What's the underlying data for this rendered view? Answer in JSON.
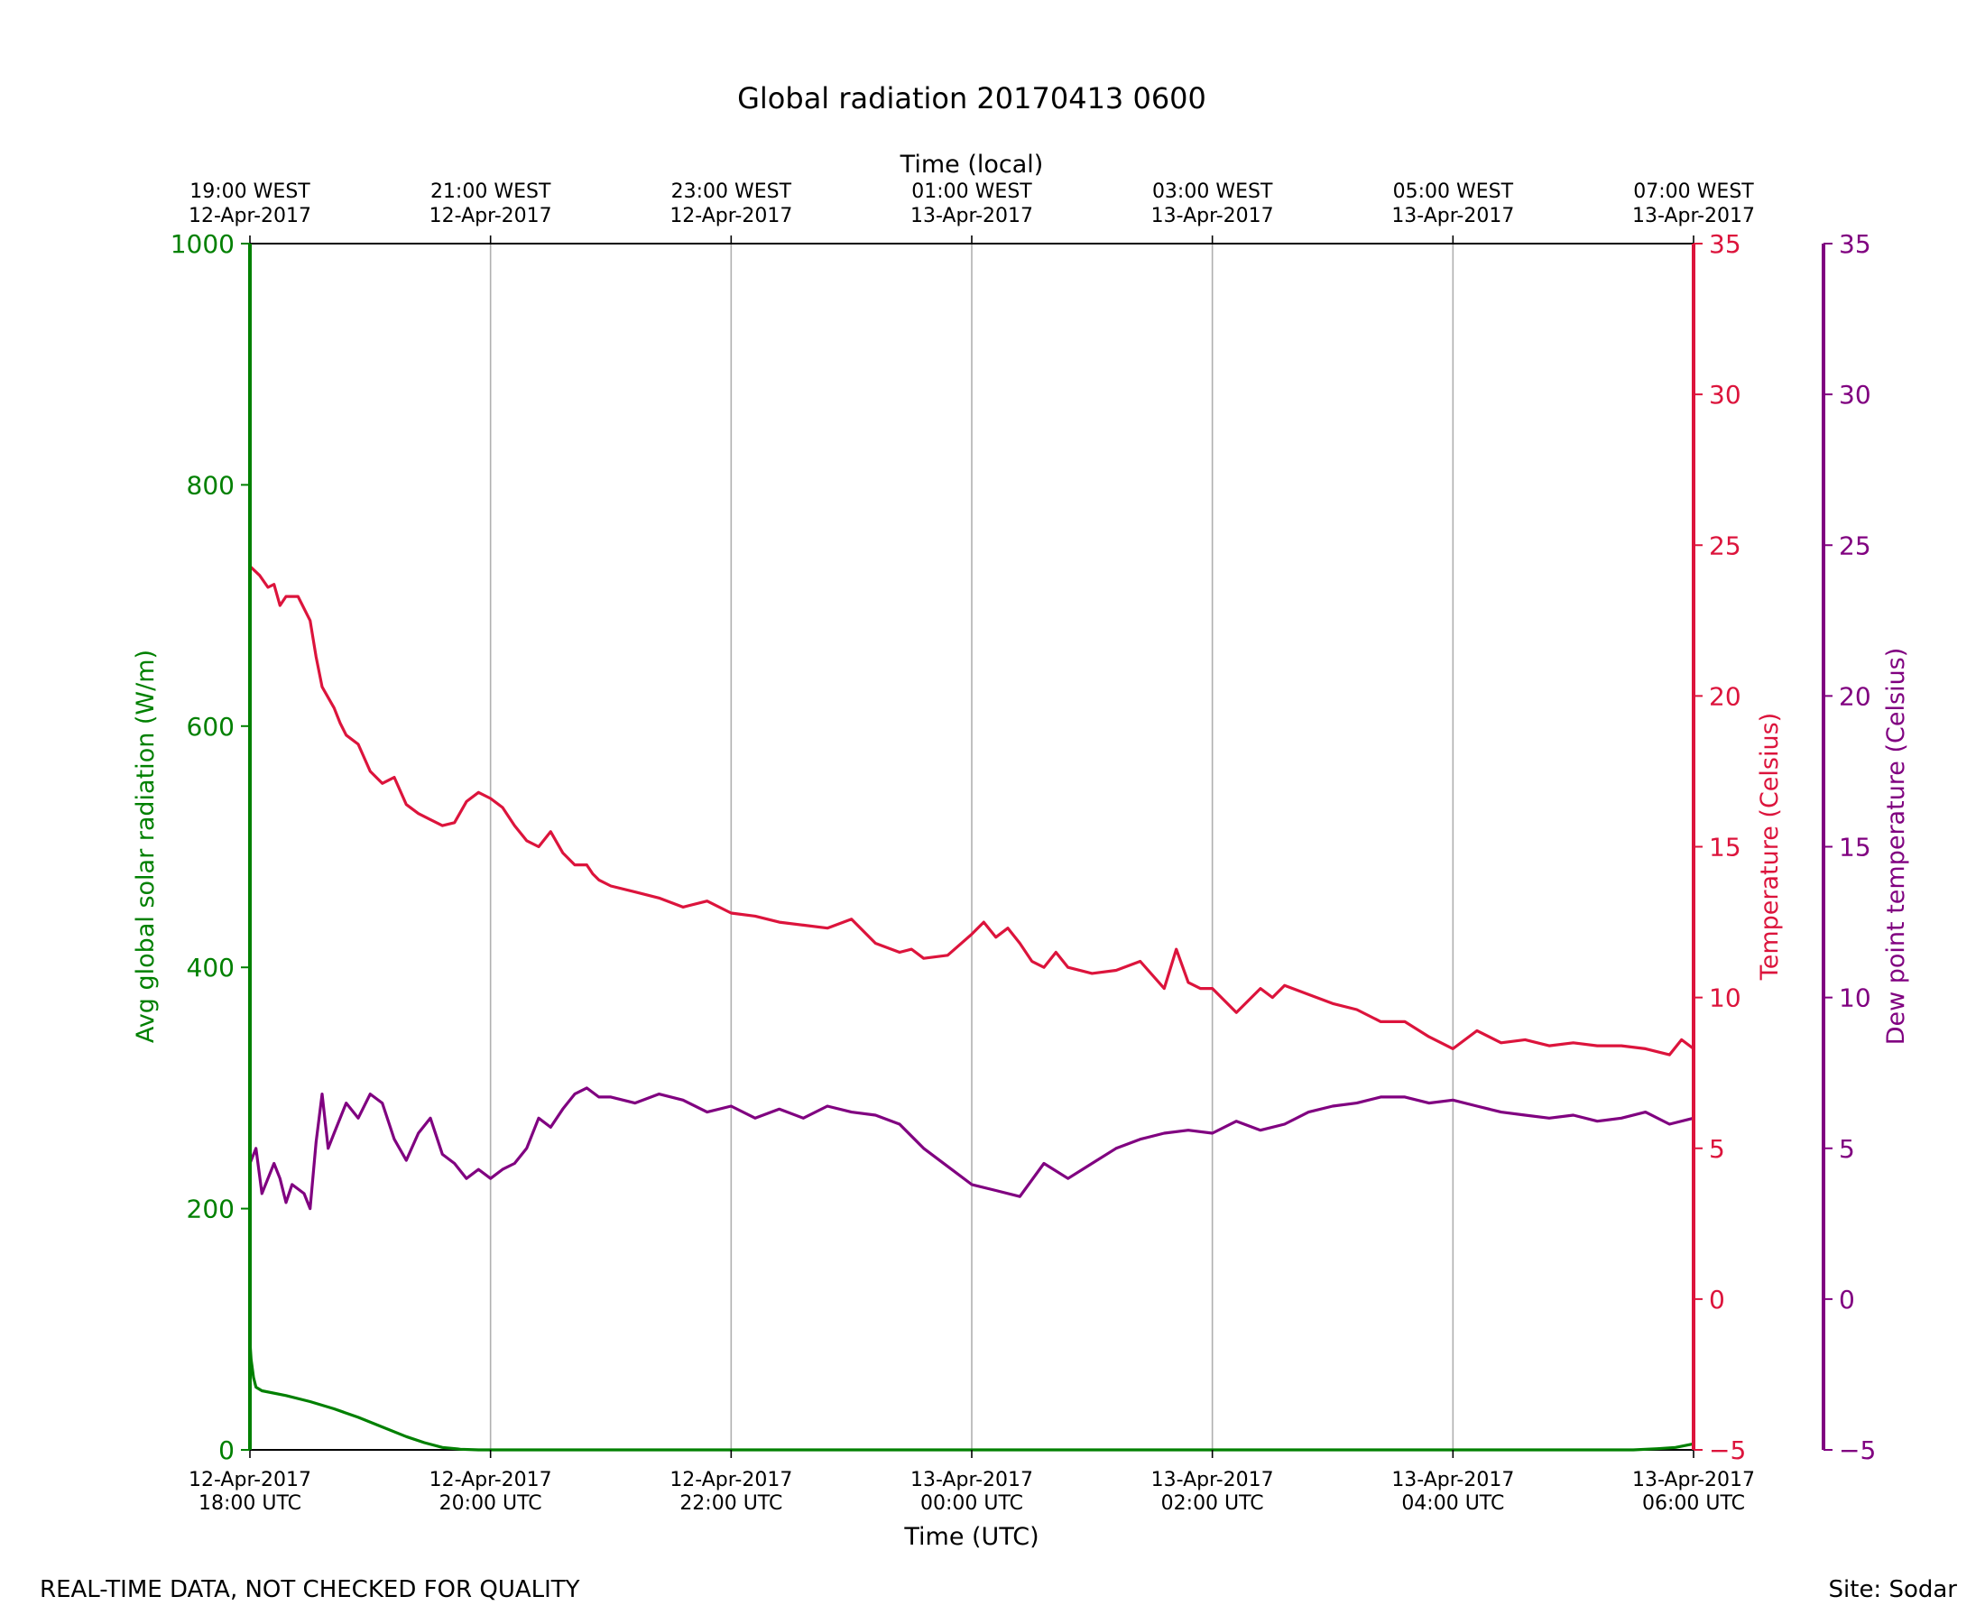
{
  "chart_data": {
    "type": "line",
    "title": "Global radiation 20170413 0600",
    "xlabel": "Time (UTC)",
    "x2label": "Time (local)",
    "x_range": [
      "2017-04-12 18:00 UTC",
      "2017-04-13 06:00 UTC"
    ],
    "x_ticks": [
      {
        "hour": 0,
        "utc_date": "12-Apr-2017",
        "utc_time": "18:00 UTC",
        "local_time": "19:00 WEST",
        "local_date": "12-Apr-2017"
      },
      {
        "hour": 2,
        "utc_date": "12-Apr-2017",
        "utc_time": "20:00 UTC",
        "local_time": "21:00 WEST",
        "local_date": "12-Apr-2017"
      },
      {
        "hour": 4,
        "utc_date": "12-Apr-2017",
        "utc_time": "22:00 UTC",
        "local_time": "23:00 WEST",
        "local_date": "12-Apr-2017"
      },
      {
        "hour": 6,
        "utc_date": "13-Apr-2017",
        "utc_time": "00:00 UTC",
        "local_time": "01:00 WEST",
        "local_date": "13-Apr-2017"
      },
      {
        "hour": 8,
        "utc_date": "13-Apr-2017",
        "utc_time": "02:00 UTC",
        "local_time": "03:00 WEST",
        "local_date": "13-Apr-2017"
      },
      {
        "hour": 10,
        "utc_date": "13-Apr-2017",
        "utc_time": "04:00 UTC",
        "local_time": "05:00 WEST",
        "local_date": "13-Apr-2017"
      },
      {
        "hour": 12,
        "utc_date": "13-Apr-2017",
        "utc_time": "06:00 UTC",
        "local_time": "07:00 WEST",
        "local_date": "13-Apr-2017"
      }
    ],
    "grid": "vertical",
    "axes": {
      "radiation": {
        "label": "Avg global solar radiation (W/m)",
        "range": [
          0,
          1000
        ],
        "ticks": [
          0,
          200,
          400,
          600,
          800,
          1000
        ],
        "color": "#008000"
      },
      "temperature": {
        "label": "Temperature (Celsius)",
        "range": [
          -5,
          35
        ],
        "ticks": [
          -5,
          0,
          5,
          10,
          15,
          20,
          25,
          30,
          35
        ],
        "color": "#dc143c"
      },
      "dewpoint": {
        "label": "Dew point temperature (Celsius)",
        "range": [
          -5,
          35
        ],
        "ticks": [
          -5,
          0,
          5,
          10,
          15,
          20,
          25,
          30,
          35
        ],
        "color": "#800080"
      }
    },
    "series": [
      {
        "axis": "radiation",
        "color": "#008000",
        "x_hours": [
          0,
          0.01,
          0.03,
          0.05,
          0.1,
          0.3,
          0.5,
          0.7,
          0.9,
          1.1,
          1.3,
          1.45,
          1.6,
          1.75,
          1.9,
          2.0,
          2.5,
          3.0,
          4.0,
          5.0,
          6.0,
          7.0,
          8.0,
          9.0,
          10.0,
          11.0,
          11.5,
          11.7,
          11.85,
          12.0
        ],
        "values": [
          90,
          75,
          60,
          52,
          49,
          45,
          40,
          34,
          27,
          19,
          11,
          6,
          2,
          0.5,
          0,
          0,
          0,
          0,
          0,
          0,
          0,
          0,
          0,
          0,
          0,
          0,
          0,
          1,
          2,
          5
        ]
      },
      {
        "axis": "temperature",
        "color": "#dc143c",
        "x_hours": [
          0,
          0.08,
          0.15,
          0.2,
          0.25,
          0.3,
          0.4,
          0.5,
          0.55,
          0.6,
          0.7,
          0.75,
          0.8,
          0.9,
          1.0,
          1.1,
          1.2,
          1.3,
          1.4,
          1.5,
          1.6,
          1.7,
          1.8,
          1.9,
          2.0,
          2.1,
          2.2,
          2.3,
          2.4,
          2.5,
          2.6,
          2.7,
          2.8,
          2.85,
          2.9,
          3.0,
          3.2,
          3.4,
          3.6,
          3.8,
          4.0,
          4.2,
          4.4,
          4.6,
          4.8,
          5.0,
          5.2,
          5.4,
          5.5,
          5.6,
          5.8,
          6.0,
          6.1,
          6.2,
          6.3,
          6.4,
          6.5,
          6.6,
          6.7,
          6.8,
          7.0,
          7.2,
          7.4,
          7.6,
          7.7,
          7.8,
          7.9,
          8.0,
          8.2,
          8.4,
          8.5,
          8.6,
          8.8,
          9.0,
          9.2,
          9.4,
          9.6,
          9.8,
          10.0,
          10.2,
          10.4,
          10.6,
          10.8,
          11.0,
          11.2,
          11.4,
          11.6,
          11.8,
          11.9,
          12.0
        ],
        "values": [
          24.3,
          24.0,
          23.6,
          23.7,
          23.0,
          23.3,
          23.3,
          22.5,
          21.3,
          20.3,
          19.6,
          19.1,
          18.7,
          18.4,
          17.5,
          17.1,
          17.3,
          16.4,
          16.1,
          15.9,
          15.7,
          15.8,
          16.5,
          16.8,
          16.6,
          16.3,
          15.7,
          15.2,
          15.0,
          15.5,
          14.8,
          14.4,
          14.4,
          14.1,
          13.9,
          13.7,
          13.5,
          13.3,
          13.0,
          13.2,
          12.8,
          12.7,
          12.5,
          12.4,
          12.3,
          12.6,
          11.8,
          11.5,
          11.6,
          11.3,
          11.4,
          12.1,
          12.5,
          12.0,
          12.3,
          11.8,
          11.2,
          11.0,
          11.5,
          11.0,
          10.8,
          10.9,
          11.2,
          10.3,
          11.6,
          10.5,
          10.3,
          10.3,
          9.5,
          10.3,
          10.0,
          10.4,
          10.1,
          9.8,
          9.6,
          9.2,
          9.2,
          8.7,
          8.3,
          8.9,
          8.5,
          8.6,
          8.4,
          8.5,
          8.4,
          8.4,
          8.3,
          8.1,
          8.6,
          8.3
        ]
      },
      {
        "axis": "dewpoint",
        "color": "#800080",
        "x_hours": [
          0,
          0.05,
          0.1,
          0.15,
          0.2,
          0.25,
          0.3,
          0.35,
          0.45,
          0.5,
          0.55,
          0.6,
          0.65,
          0.7,
          0.8,
          0.9,
          1.0,
          1.1,
          1.2,
          1.3,
          1.4,
          1.5,
          1.6,
          1.7,
          1.8,
          1.9,
          2.0,
          2.1,
          2.2,
          2.3,
          2.4,
          2.5,
          2.6,
          2.7,
          2.8,
          2.9,
          3.0,
          3.2,
          3.4,
          3.6,
          3.8,
          4.0,
          4.2,
          4.4,
          4.6,
          4.8,
          5.0,
          5.2,
          5.4,
          5.6,
          5.8,
          6.0,
          6.2,
          6.4,
          6.6,
          6.8,
          7.0,
          7.2,
          7.4,
          7.6,
          7.8,
          8.0,
          8.2,
          8.4,
          8.6,
          8.8,
          9.0,
          9.2,
          9.4,
          9.6,
          9.8,
          10.0,
          10.2,
          10.4,
          10.6,
          10.8,
          11.0,
          11.2,
          11.4,
          11.6,
          11.8,
          12.0
        ],
        "values": [
          4.5,
          5.0,
          3.5,
          4.0,
          4.5,
          4.0,
          3.2,
          3.8,
          3.5,
          3.0,
          5.2,
          6.8,
          5.0,
          5.5,
          6.5,
          6.0,
          6.8,
          6.5,
          5.3,
          4.6,
          5.5,
          6.0,
          4.8,
          4.5,
          4.0,
          4.3,
          4.0,
          4.3,
          4.5,
          5.0,
          6.0,
          5.7,
          6.3,
          6.8,
          7.0,
          6.7,
          6.7,
          6.5,
          6.8,
          6.6,
          6.2,
          6.4,
          6.0,
          6.3,
          6.0,
          6.4,
          6.2,
          6.1,
          5.8,
          5.0,
          4.4,
          3.8,
          3.6,
          3.4,
          4.5,
          4.0,
          4.5,
          5.0,
          5.3,
          5.5,
          5.6,
          5.5,
          5.9,
          5.6,
          5.8,
          6.2,
          6.4,
          6.5,
          6.7,
          6.7,
          6.5,
          6.6,
          6.4,
          6.2,
          6.1,
          6.0,
          6.1,
          5.9,
          6.0,
          6.2,
          5.8,
          6.0
        ]
      }
    ]
  },
  "footer": {
    "left": "REAL-TIME DATA, NOT CHECKED FOR QUALITY",
    "right": "Site: Sodar"
  }
}
